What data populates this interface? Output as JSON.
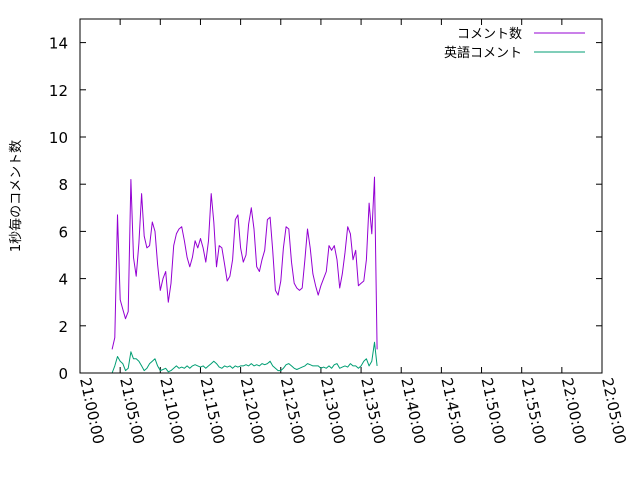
{
  "chart_data": {
    "type": "line",
    "xlabel": "",
    "ylabel": "1秒毎のコメント数",
    "xlim": [
      "21:00:00",
      "22:05:00"
    ],
    "ylim": [
      0,
      15
    ],
    "x_ticks": [
      "21:00:00",
      "21:05:00",
      "21:10:00",
      "21:15:00",
      "21:20:00",
      "21:25:00",
      "21:30:00",
      "21:35:00",
      "21:40:00",
      "21:45:00",
      "21:50:00",
      "21:55:00",
      "22:00:00",
      "22:05:00"
    ],
    "y_ticks": [
      "0",
      "2",
      "4",
      "6",
      "8",
      "10",
      "12",
      "14"
    ],
    "grid": false,
    "legend": "top-right",
    "series": [
      {
        "name": "コメント数",
        "color": "#9400d3",
        "points": [
          [
            "21:04:00",
            1.0
          ],
          [
            "21:04:20",
            1.5
          ],
          [
            "21:04:40",
            6.7
          ],
          [
            "21:05:00",
            3.1
          ],
          [
            "21:05:20",
            2.7
          ],
          [
            "21:05:40",
            2.3
          ],
          [
            "21:06:00",
            2.6
          ],
          [
            "21:06:20",
            8.2
          ],
          [
            "21:06:40",
            4.9
          ],
          [
            "21:07:00",
            4.1
          ],
          [
            "21:07:20",
            5.5
          ],
          [
            "21:07:40",
            7.6
          ],
          [
            "21:08:00",
            5.8
          ],
          [
            "21:08:20",
            5.3
          ],
          [
            "21:08:40",
            5.4
          ],
          [
            "21:09:00",
            6.4
          ],
          [
            "21:09:20",
            6.0
          ],
          [
            "21:09:40",
            4.6
          ],
          [
            "21:10:00",
            3.5
          ],
          [
            "21:10:20",
            4.0
          ],
          [
            "21:10:40",
            4.3
          ],
          [
            "21:11:00",
            3.0
          ],
          [
            "21:11:20",
            3.8
          ],
          [
            "21:11:40",
            5.4
          ],
          [
            "21:12:00",
            5.9
          ],
          [
            "21:12:20",
            6.1
          ],
          [
            "21:12:40",
            6.2
          ],
          [
            "21:13:00",
            5.6
          ],
          [
            "21:13:20",
            4.9
          ],
          [
            "21:13:40",
            4.5
          ],
          [
            "21:14:00",
            4.9
          ],
          [
            "21:14:20",
            5.6
          ],
          [
            "21:14:40",
            5.3
          ],
          [
            "21:15:00",
            5.7
          ],
          [
            "21:15:20",
            5.3
          ],
          [
            "21:15:40",
            4.7
          ],
          [
            "21:16:00",
            5.6
          ],
          [
            "21:16:20",
            7.6
          ],
          [
            "21:16:40",
            6.4
          ],
          [
            "21:17:00",
            4.5
          ],
          [
            "21:17:20",
            5.4
          ],
          [
            "21:17:40",
            5.3
          ],
          [
            "21:18:00",
            4.6
          ],
          [
            "21:18:20",
            3.9
          ],
          [
            "21:18:40",
            4.1
          ],
          [
            "21:19:00",
            4.8
          ],
          [
            "21:19:20",
            6.5
          ],
          [
            "21:19:40",
            6.7
          ],
          [
            "21:20:00",
            5.3
          ],
          [
            "21:20:20",
            4.7
          ],
          [
            "21:20:40",
            5.0
          ],
          [
            "21:21:00",
            6.3
          ],
          [
            "21:21:20",
            7.0
          ],
          [
            "21:21:40",
            6.1
          ],
          [
            "21:22:00",
            4.5
          ],
          [
            "21:22:20",
            4.3
          ],
          [
            "21:22:40",
            4.8
          ],
          [
            "21:23:00",
            5.2
          ],
          [
            "21:23:20",
            6.5
          ],
          [
            "21:23:40",
            6.6
          ],
          [
            "21:24:00",
            5.2
          ],
          [
            "21:24:20",
            3.5
          ],
          [
            "21:24:40",
            3.3
          ],
          [
            "21:25:00",
            3.9
          ],
          [
            "21:25:20",
            5.3
          ],
          [
            "21:25:40",
            6.2
          ],
          [
            "21:26:00",
            6.1
          ],
          [
            "21:26:20",
            4.7
          ],
          [
            "21:26:40",
            3.8
          ],
          [
            "21:27:00",
            3.6
          ],
          [
            "21:27:20",
            3.5
          ],
          [
            "21:27:40",
            3.6
          ],
          [
            "21:28:00",
            4.8
          ],
          [
            "21:28:20",
            6.1
          ],
          [
            "21:28:40",
            5.3
          ],
          [
            "21:29:00",
            4.2
          ],
          [
            "21:29:20",
            3.7
          ],
          [
            "21:29:40",
            3.3
          ],
          [
            "21:30:00",
            3.7
          ],
          [
            "21:30:20",
            4.0
          ],
          [
            "21:30:40",
            4.3
          ],
          [
            "21:31:00",
            5.4
          ],
          [
            "21:31:20",
            5.2
          ],
          [
            "21:31:40",
            5.4
          ],
          [
            "21:32:00",
            4.8
          ],
          [
            "21:32:20",
            3.6
          ],
          [
            "21:32:40",
            4.2
          ],
          [
            "21:33:00",
            5.1
          ],
          [
            "21:33:20",
            6.2
          ],
          [
            "21:33:40",
            5.9
          ],
          [
            "21:34:00",
            4.8
          ],
          [
            "21:34:20",
            5.2
          ],
          [
            "21:34:40",
            3.7
          ],
          [
            "21:35:00",
            3.8
          ],
          [
            "21:35:20",
            3.9
          ],
          [
            "21:35:40",
            4.8
          ],
          [
            "21:36:00",
            7.2
          ],
          [
            "21:36:20",
            5.9
          ],
          [
            "21:36:40",
            8.3
          ],
          [
            "21:37:00",
            1.0
          ]
        ]
      },
      {
        "name": "英語コメント",
        "color": "#009e73",
        "points": [
          [
            "21:04:00",
            0.0
          ],
          [
            "21:04:20",
            0.3
          ],
          [
            "21:04:40",
            0.7
          ],
          [
            "21:05:00",
            0.5
          ],
          [
            "21:05:20",
            0.4
          ],
          [
            "21:05:40",
            0.1
          ],
          [
            "21:06:00",
            0.2
          ],
          [
            "21:06:20",
            0.9
          ],
          [
            "21:06:40",
            0.6
          ],
          [
            "21:07:00",
            0.6
          ],
          [
            "21:07:20",
            0.5
          ],
          [
            "21:07:40",
            0.3
          ],
          [
            "21:08:00",
            0.1
          ],
          [
            "21:08:20",
            0.2
          ],
          [
            "21:08:40",
            0.4
          ],
          [
            "21:09:00",
            0.5
          ],
          [
            "21:09:20",
            0.6
          ],
          [
            "21:09:40",
            0.3
          ],
          [
            "21:10:00",
            0.1
          ],
          [
            "21:10:20",
            0.15
          ],
          [
            "21:10:40",
            0.2
          ],
          [
            "21:11:00",
            0.05
          ],
          [
            "21:11:20",
            0.1
          ],
          [
            "21:11:40",
            0.2
          ],
          [
            "21:12:00",
            0.3
          ],
          [
            "21:12:20",
            0.2
          ],
          [
            "21:12:40",
            0.25
          ],
          [
            "21:13:00",
            0.2
          ],
          [
            "21:13:20",
            0.3
          ],
          [
            "21:13:40",
            0.2
          ],
          [
            "21:14:00",
            0.3
          ],
          [
            "21:14:20",
            0.35
          ],
          [
            "21:14:40",
            0.3
          ],
          [
            "21:15:00",
            0.25
          ],
          [
            "21:15:20",
            0.3
          ],
          [
            "21:15:40",
            0.2
          ],
          [
            "21:16:00",
            0.3
          ],
          [
            "21:16:20",
            0.4
          ],
          [
            "21:16:40",
            0.5
          ],
          [
            "21:17:00",
            0.4
          ],
          [
            "21:17:20",
            0.25
          ],
          [
            "21:17:40",
            0.2
          ],
          [
            "21:18:00",
            0.3
          ],
          [
            "21:18:20",
            0.25
          ],
          [
            "21:18:40",
            0.3
          ],
          [
            "21:19:00",
            0.2
          ],
          [
            "21:19:20",
            0.3
          ],
          [
            "21:19:40",
            0.25
          ],
          [
            "21:20:00",
            0.3
          ],
          [
            "21:20:20",
            0.3
          ],
          [
            "21:20:40",
            0.35
          ],
          [
            "21:21:00",
            0.3
          ],
          [
            "21:21:20",
            0.4
          ],
          [
            "21:21:40",
            0.3
          ],
          [
            "21:22:00",
            0.35
          ],
          [
            "21:22:20",
            0.3
          ],
          [
            "21:22:40",
            0.4
          ],
          [
            "21:23:00",
            0.35
          ],
          [
            "21:23:20",
            0.4
          ],
          [
            "21:23:40",
            0.5
          ],
          [
            "21:24:00",
            0.3
          ],
          [
            "21:24:20",
            0.2
          ],
          [
            "21:24:40",
            0.1
          ],
          [
            "21:25:00",
            0.1
          ],
          [
            "21:25:20",
            0.2
          ],
          [
            "21:25:40",
            0.35
          ],
          [
            "21:26:00",
            0.4
          ],
          [
            "21:26:20",
            0.3
          ],
          [
            "21:26:40",
            0.2
          ],
          [
            "21:27:00",
            0.15
          ],
          [
            "21:27:20",
            0.2
          ],
          [
            "21:27:40",
            0.25
          ],
          [
            "21:28:00",
            0.3
          ],
          [
            "21:28:20",
            0.4
          ],
          [
            "21:28:40",
            0.35
          ],
          [
            "21:29:00",
            0.3
          ],
          [
            "21:29:20",
            0.3
          ],
          [
            "21:29:40",
            0.3
          ],
          [
            "21:30:00",
            0.2
          ],
          [
            "21:30:20",
            0.25
          ],
          [
            "21:30:40",
            0.2
          ],
          [
            "21:31:00",
            0.3
          ],
          [
            "21:31:20",
            0.2
          ],
          [
            "21:31:40",
            0.35
          ],
          [
            "21:32:00",
            0.4
          ],
          [
            "21:32:20",
            0.2
          ],
          [
            "21:32:40",
            0.25
          ],
          [
            "21:33:00",
            0.3
          ],
          [
            "21:33:20",
            0.25
          ],
          [
            "21:33:40",
            0.4
          ],
          [
            "21:34:00",
            0.3
          ],
          [
            "21:34:20",
            0.3
          ],
          [
            "21:34:40",
            0.2
          ],
          [
            "21:35:00",
            0.3
          ],
          [
            "21:35:20",
            0.5
          ],
          [
            "21:35:40",
            0.6
          ],
          [
            "21:36:00",
            0.3
          ],
          [
            "21:36:20",
            0.5
          ],
          [
            "21:36:40",
            1.3
          ],
          [
            "21:37:00",
            0.3
          ]
        ]
      }
    ]
  }
}
